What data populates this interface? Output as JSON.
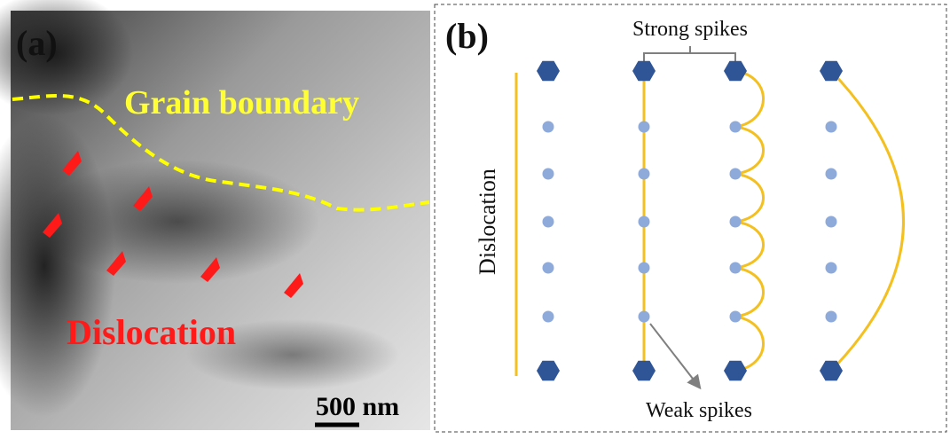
{
  "panel_a": {
    "label": "(a)",
    "grain_boundary": "Grain boundary",
    "dislocation": "Dislocation",
    "scale_bar": "500 nm"
  },
  "panel_b": {
    "label": "(b)",
    "strong_spikes": "Strong spikes",
    "dislocation": "Dislocation",
    "weak_spikes": "Weak spikes"
  }
}
